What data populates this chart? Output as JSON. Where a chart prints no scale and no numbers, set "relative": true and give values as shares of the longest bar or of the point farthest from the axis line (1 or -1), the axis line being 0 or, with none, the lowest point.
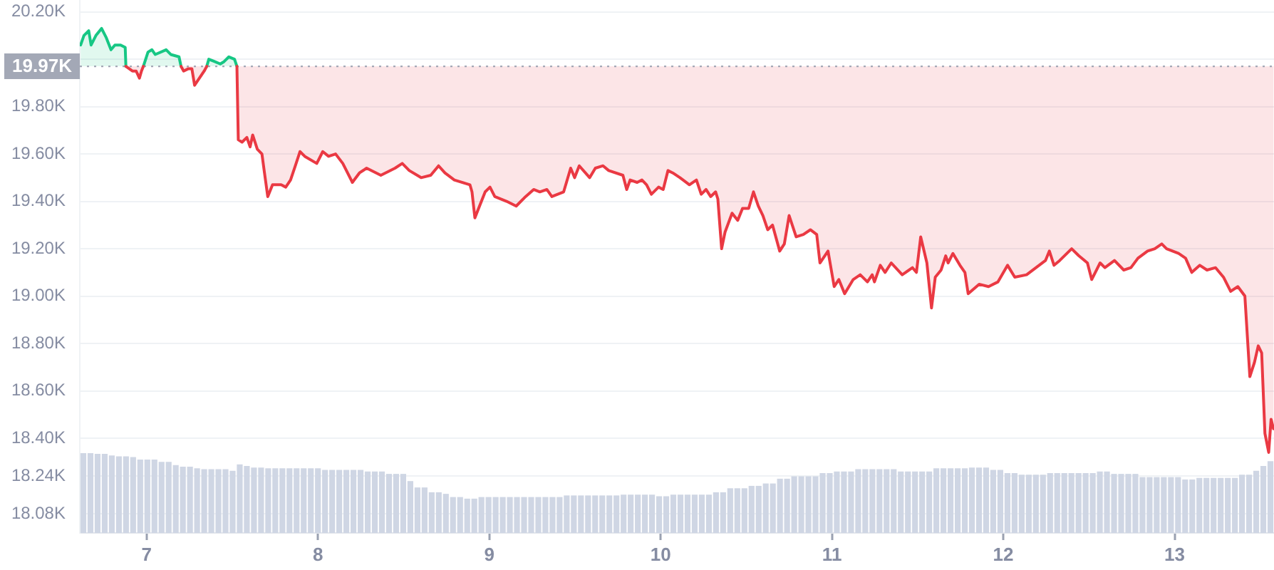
{
  "chart_data": [
    {
      "type": "line",
      "series": [
        {
          "color": "#16c784",
          "x": [
            6.615,
            6.634,
            6.662,
            6.676,
            6.704,
            6.737,
            6.765,
            6.792,
            6.815,
            6.848,
            6.875,
            6.879,
            6.94,
            6.981,
            7.008,
            7.031,
            7.05,
            7.114,
            7.141,
            7.189,
            7.201,
            7.28,
            7.351,
            7.363,
            7.397,
            7.43,
            7.452,
            7.48,
            7.513,
            7.527
          ],
          "values": [
            20060,
            20100,
            20120,
            20060,
            20100,
            20130,
            20090,
            20040,
            20060,
            20060,
            20050,
            19970,
            null,
            19970,
            20030,
            20040,
            20020,
            20040,
            20020,
            20010,
            19970,
            null,
            19970,
            20000,
            19990,
            19980,
            19990,
            20010,
            20000,
            19970
          ],
          "lower": [
            19970,
            19970,
            19970,
            19970,
            19970,
            19970,
            19970,
            19970,
            19970,
            19970,
            19970,
            19970,
            null,
            19970,
            19970,
            19970,
            19970,
            19970,
            19970,
            19970,
            19970,
            null,
            19970,
            19970,
            19970,
            19970,
            19970,
            19970,
            19970,
            19970
          ],
          "upper": [
            20060,
            20100,
            20120,
            20060,
            20100,
            20130,
            20090,
            20040,
            20060,
            20060,
            20050,
            19970,
            null,
            19970,
            20030,
            20040,
            20020,
            20040,
            20020,
            20010,
            19970,
            null,
            19970,
            20000,
            19990,
            19980,
            19990,
            20010,
            20000,
            19970
          ]
        },
        {
          "color": "#ea3943",
          "x": [
            6.879,
            6.898,
            6.917,
            6.939,
            6.958,
            6.97,
            6.981,
            7.1,
            7.201,
            7.216,
            7.244,
            7.264,
            7.28,
            7.308,
            7.336,
            7.351,
            7.45,
            7.527,
            7.535,
            7.557,
            7.585,
            7.604,
            7.619,
            7.646,
            7.673,
            7.688,
            7.707,
            7.735,
            7.785,
            7.812,
            7.84,
            7.868,
            7.895,
            7.923,
            7.993,
            8.028,
            8.062,
            8.103,
            8.145,
            8.201,
            8.242,
            8.284,
            8.367,
            8.45,
            8.492,
            8.533,
            8.602,
            8.658,
            8.704,
            8.741,
            8.796,
            8.887,
            8.899,
            8.916,
            8.943,
            8.976,
            9.004,
            9.032,
            9.101,
            9.157,
            9.212,
            9.259,
            9.295,
            9.336,
            9.365,
            9.434,
            9.475,
            9.498,
            9.525,
            9.586,
            9.619,
            9.664,
            9.697,
            9.78,
            9.802,
            9.822,
            9.863,
            9.891,
            9.918,
            9.946,
            9.988,
            10.015,
            10.043,
            10.071,
            10.113,
            10.168,
            10.209,
            10.237,
            10.265,
            10.292,
            10.321,
            10.334,
            10.356,
            10.376,
            10.417,
            10.45,
            10.478,
            10.514,
            10.542,
            10.57,
            10.597,
            10.625,
            10.653,
            10.695,
            10.722,
            10.75,
            10.791,
            10.833,
            10.874,
            10.911,
            10.93,
            10.977,
            11.013,
            11.04,
            11.074,
            11.124,
            11.165,
            11.207,
            11.235,
            11.248,
            11.282,
            11.31,
            11.346,
            11.41,
            11.47,
            11.493,
            11.518,
            11.554,
            11.581,
            11.603,
            11.637,
            11.664,
            11.678,
            11.706,
            11.747,
            11.776,
            11.795,
            11.859,
            11.914,
            11.969,
            12.025,
            12.067,
            12.136,
            12.191,
            12.246,
            12.269,
            12.296,
            12.329,
            12.399,
            12.441,
            12.491,
            12.516,
            12.537,
            12.565,
            12.593,
            12.649,
            12.703,
            12.745,
            12.786,
            12.842,
            12.884,
            12.925,
            12.953,
            13.023,
            13.064,
            13.1,
            13.147,
            13.189,
            13.239,
            13.285,
            13.327,
            13.369,
            13.41,
            13.439,
            13.466,
            13.488,
            13.508,
            13.527,
            13.549,
            13.563,
            13.577
          ],
          "values": [
            19970,
            19960,
            19950,
            19950,
            19920,
            19950,
            19970,
            null,
            19970,
            19950,
            19960,
            19960,
            19890,
            19920,
            19950,
            19970,
            null,
            19970,
            19660,
            19650,
            19670,
            19630,
            19680,
            19620,
            19600,
            19520,
            19420,
            19470,
            19470,
            19460,
            19490,
            19550,
            19610,
            19590,
            19560,
            19610,
            19590,
            19600,
            19560,
            19480,
            19520,
            19540,
            19510,
            19540,
            19560,
            19530,
            19500,
            19510,
            19550,
            19520,
            19490,
            19470,
            19440,
            19330,
            19380,
            19440,
            19460,
            19420,
            19400,
            19380,
            19420,
            19450,
            19440,
            19450,
            19420,
            19440,
            19540,
            19500,
            19550,
            19500,
            19540,
            19550,
            19530,
            19510,
            19450,
            19490,
            19480,
            19490,
            19470,
            19430,
            19460,
            19450,
            19530,
            19520,
            19500,
            19470,
            19490,
            19430,
            19450,
            19420,
            19440,
            19410,
            19200,
            19270,
            19350,
            19320,
            19370,
            19370,
            19440,
            19380,
            19340,
            19280,
            19300,
            19190,
            19220,
            19340,
            19250,
            19260,
            19280,
            19260,
            19140,
            19190,
            19040,
            19070,
            19010,
            19070,
            19090,
            19060,
            19090,
            19060,
            19130,
            19100,
            19140,
            19090,
            19120,
            19100,
            19250,
            19140,
            18950,
            19080,
            19110,
            19170,
            19140,
            19180,
            19130,
            19100,
            19010,
            19050,
            19040,
            19060,
            19130,
            19080,
            19090,
            19120,
            19150,
            19190,
            19130,
            19150,
            19200,
            19170,
            19140,
            19070,
            19100,
            19140,
            19120,
            19150,
            19110,
            19120,
            19160,
            19190,
            19200,
            19220,
            19200,
            19180,
            19160,
            19100,
            19130,
            19110,
            19120,
            19080,
            19020,
            19040,
            19000,
            18660,
            18720,
            18790,
            18760,
            18420,
            18340,
            18480,
            18440
          ],
          "lower": [
            19970,
            19960,
            19950,
            19950,
            19920,
            19950,
            19970,
            null,
            19970,
            19950,
            19960,
            19960,
            19890,
            19920,
            19950,
            19970,
            null,
            19970,
            19660,
            19650,
            19670,
            19630,
            19680,
            19620,
            19600,
            19520,
            19420,
            19470,
            19470,
            19460,
            19490,
            19550,
            19610,
            19590,
            19560,
            19610,
            19590,
            19600,
            19560,
            19480,
            19520,
            19540,
            19510,
            19540,
            19560,
            19530,
            19500,
            19510,
            19550,
            19520,
            19490,
            19470,
            19440,
            19330,
            19380,
            19440,
            19460,
            19420,
            19400,
            19380,
            19420,
            19450,
            19440,
            19450,
            19420,
            19440,
            19540,
            19500,
            19550,
            19500,
            19540,
            19550,
            19530,
            19510,
            19450,
            19490,
            19480,
            19490,
            19470,
            19430,
            19460,
            19450,
            19530,
            19520,
            19500,
            19470,
            19490,
            19430,
            19450,
            19420,
            19440,
            19410,
            19200,
            19270,
            19350,
            19320,
            19370,
            19370,
            19440,
            19380,
            19340,
            19280,
            19300,
            19190,
            19220,
            19340,
            19250,
            19260,
            19280,
            19260,
            19140,
            19190,
            19040,
            19070,
            19010,
            19070,
            19090,
            19060,
            19090,
            19060,
            19130,
            19100,
            19140,
            19090,
            19120,
            19100,
            19250,
            19140,
            18950,
            19080,
            19110,
            19170,
            19140,
            19180,
            19130,
            19100,
            19010,
            19050,
            19040,
            19060,
            19130,
            19080,
            19090,
            19120,
            19150,
            19190,
            19130,
            19150,
            19200,
            19170,
            19140,
            19070,
            19100,
            19140,
            19120,
            19150,
            19110,
            19120,
            19160,
            19190,
            19200,
            19220,
            19200,
            19180,
            19160,
            19100,
            19130,
            19110,
            19120,
            19080,
            19020,
            19040,
            19000,
            18660,
            18720,
            18790,
            18760,
            18420,
            18340,
            18480,
            18440
          ],
          "upper": [
            19970,
            19970,
            19970,
            19970,
            19970,
            19970,
            19970,
            null,
            19970,
            19970,
            19970,
            19970,
            19970,
            19970,
            19970,
            19970,
            null,
            19970,
            19970,
            19970,
            19970,
            19970,
            19970,
            19970,
            19970,
            19970,
            19970,
            19970,
            19970,
            19970,
            19970,
            19970,
            19970,
            19970,
            19970,
            19970,
            19970,
            19970,
            19970,
            19970,
            19970,
            19970,
            19970,
            19970,
            19970,
            19970,
            19970,
            19970,
            19970,
            19970,
            19970,
            19970,
            19970,
            19970,
            19970,
            19970,
            19970,
            19970,
            19970,
            19970,
            19970,
            19970,
            19970,
            19970,
            19970,
            19970,
            19970,
            19970,
            19970,
            19970,
            19970,
            19970,
            19970,
            19970,
            19970,
            19970,
            19970,
            19970,
            19970,
            19970,
            19970,
            19970,
            19970,
            19970,
            19970,
            19970,
            19970,
            19970,
            19970,
            19970,
            19970,
            19970,
            19970,
            19970,
            19970,
            19970,
            19970,
            19970,
            19970,
            19970,
            19970,
            19970,
            19970,
            19970,
            19970,
            19970,
            19970,
            19970,
            19970,
            19970,
            19970,
            19970,
            19970,
            19970,
            19970,
            19970,
            19970,
            19970,
            19970,
            19970,
            19970,
            19970,
            19970,
            19970,
            19970,
            19970,
            19970,
            19970,
            19970,
            19970,
            19970,
            19970,
            19970,
            19970,
            19970,
            19970,
            19970,
            19970,
            19970,
            19970,
            19970,
            19970,
            19970,
            19970,
            19970,
            19970,
            19970,
            19970,
            19970,
            19970,
            19970,
            19970,
            19970,
            19970,
            19970,
            19970,
            19970,
            19970,
            19970,
            19970,
            19970,
            19970,
            19970,
            19970,
            19970,
            19970,
            19970,
            19970,
            19970,
            19970,
            19970,
            19970,
            19970,
            19970,
            19970,
            19970,
            19970,
            19970,
            19970,
            19970,
            19970
          ]
        }
      ],
      "xlim": [
        6.61,
        13.58
      ],
      "xticks": [
        7,
        8,
        9,
        10,
        11,
        12,
        13
      ],
      "ylim": [
        18000,
        20250
      ],
      "yticks": [
        {
          "value": 18080,
          "label": "18.08K"
        },
        {
          "value": 18240,
          "label": "18.24K"
        },
        {
          "value": 18400,
          "label": "18.40K"
        },
        {
          "value": 18600,
          "label": "18.60K"
        },
        {
          "value": 18800,
          "label": "18.80K"
        },
        {
          "value": 19000,
          "label": "19.00K"
        },
        {
          "value": 19200,
          "label": "19.20K"
        },
        {
          "value": 19400,
          "label": "19.40K"
        },
        {
          "value": 19600,
          "label": "19.60K"
        },
        {
          "value": 19800,
          "label": "19.80K"
        },
        {
          "value": 20000,
          "label": null
        },
        {
          "value": 20200,
          "label": "20.20K"
        }
      ],
      "ref_lines": [
        {
          "axis": "y",
          "value": 19970,
          "label": "19.97K",
          "line_style": "dotted",
          "color": "#a3a8b6"
        }
      ],
      "grid": "y",
      "legend": false,
      "marker": "none"
    },
    {
      "type": "bar",
      "relative": true,
      "color": "#cfd6e4",
      "tick_labels": false,
      "categories": [
        null,
        null,
        null,
        null,
        null,
        null,
        null,
        null,
        null,
        null,
        null,
        null,
        null,
        null,
        null,
        null,
        null,
        null,
        null,
        null,
        null,
        null,
        null,
        null,
        null,
        null,
        null,
        null,
        null,
        null,
        null,
        null,
        null,
        null,
        null,
        null,
        null,
        null,
        null,
        null,
        null,
        null,
        null,
        null,
        null,
        null,
        null,
        null,
        null,
        null,
        null,
        null,
        null,
        null,
        null,
        null,
        null,
        null,
        null,
        null,
        null,
        null,
        null,
        null,
        null,
        null,
        null,
        null,
        null,
        null,
        null,
        null,
        null,
        null,
        null,
        null,
        null,
        null,
        null,
        null,
        null,
        null,
        null,
        null,
        null,
        null,
        null,
        null,
        null,
        null,
        null,
        null,
        null,
        null,
        null,
        null,
        null,
        null,
        null,
        null,
        null,
        null,
        null,
        null,
        null,
        null,
        null,
        null,
        null,
        null,
        null,
        null,
        null,
        null,
        null,
        null,
        null,
        null,
        null,
        null,
        null,
        null,
        null,
        null,
        null,
        null,
        null,
        null,
        null,
        null,
        null,
        null,
        null,
        null,
        null,
        null,
        null,
        null,
        null,
        null,
        null,
        null,
        null,
        null,
        null,
        null,
        null,
        null,
        null,
        null,
        null,
        null,
        null,
        null,
        null,
        null,
        null,
        null,
        null,
        null,
        null,
        null,
        null,
        null,
        null,
        null,
        null,
        null
      ],
      "values": [
        1,
        1,
        0.99,
        0.99,
        0.97,
        0.96,
        0.96,
        0.95,
        0.92,
        0.92,
        0.92,
        0.89,
        0.89,
        0.85,
        0.83,
        0.83,
        0.81,
        0.8,
        0.8,
        0.8,
        0.8,
        0.78,
        0.86,
        0.84,
        0.82,
        0.82,
        0.81,
        0.81,
        0.81,
        0.81,
        0.81,
        0.81,
        0.81,
        0.81,
        0.79,
        0.79,
        0.79,
        0.79,
        0.79,
        0.79,
        0.77,
        0.77,
        0.77,
        0.74,
        0.74,
        0.74,
        0.65,
        0.57,
        0.57,
        0.51,
        0.51,
        0.49,
        0.45,
        0.45,
        0.43,
        0.43,
        0.45,
        0.45,
        0.45,
        0.45,
        0.45,
        0.45,
        0.45,
        0.45,
        0.45,
        0.45,
        0.45,
        0.45,
        0.47,
        0.47,
        0.47,
        0.47,
        0.47,
        0.47,
        0.47,
        0.47,
        0.48,
        0.48,
        0.48,
        0.48,
        0.48,
        0.46,
        0.46,
        0.48,
        0.48,
        0.48,
        0.48,
        0.48,
        0.48,
        0.51,
        0.51,
        0.56,
        0.56,
        0.56,
        0.59,
        0.59,
        0.62,
        0.62,
        0.68,
        0.68,
        0.71,
        0.71,
        0.71,
        0.71,
        0.75,
        0.75,
        0.77,
        0.77,
        0.77,
        0.8,
        0.8,
        0.8,
        0.8,
        0.8,
        0.8,
        0.77,
        0.77,
        0.77,
        0.77,
        0.77,
        0.81,
        0.81,
        0.81,
        0.81,
        0.81,
        0.82,
        0.82,
        0.82,
        0.79,
        0.79,
        0.75,
        0.75,
        0.73,
        0.73,
        0.73,
        0.73,
        0.75,
        0.75,
        0.75,
        0.75,
        0.75,
        0.75,
        0.75,
        0.77,
        0.77,
        0.74,
        0.74,
        0.74,
        0.74,
        0.7,
        0.7,
        0.7,
        0.7,
        0.7,
        0.7,
        0.67,
        0.67,
        0.69,
        0.69,
        0.69,
        0.69,
        0.69,
        0.69,
        0.73,
        0.73,
        0.78,
        0.84,
        0.9
      ]
    }
  ]
}
